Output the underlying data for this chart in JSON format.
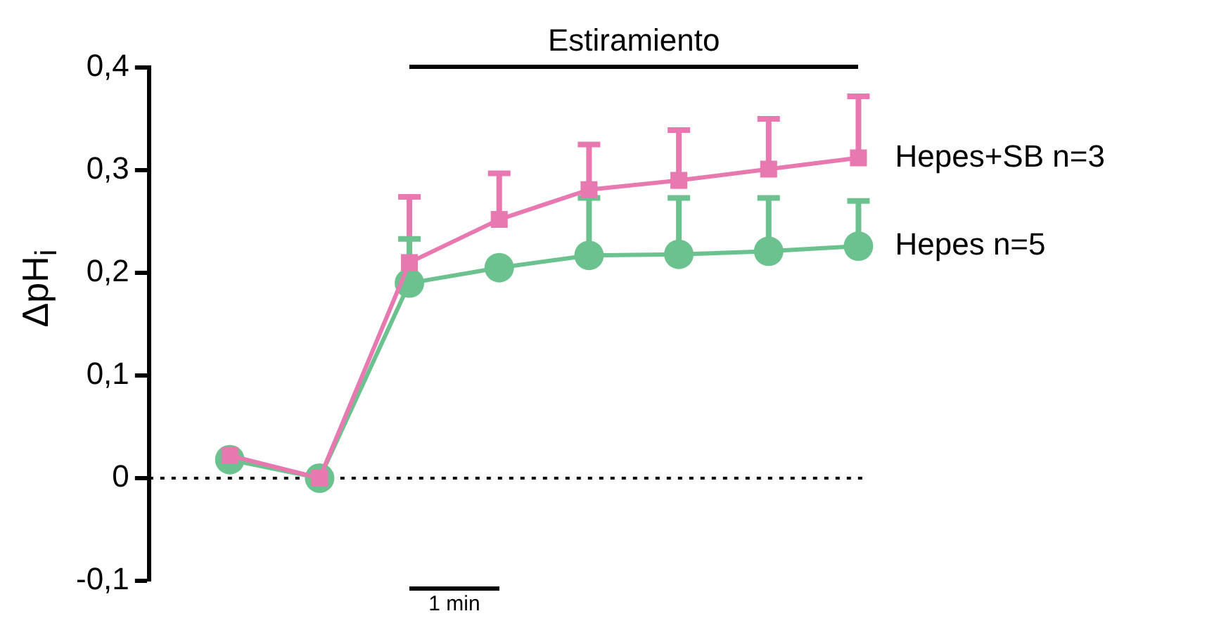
{
  "chart_data": {
    "type": "line",
    "ylabel": "ΔpH$_{i}$",
    "categories": [
      null,
      null,
      null,
      null,
      null,
      null,
      null,
      null
    ],
    "series": [
      {
        "name": "Hepes+SB n=3",
        "color": "#e878b0",
        "marker": "square",
        "values": [
          0.022,
          0,
          0.21,
          0.252,
          0.281,
          0.29,
          0.301,
          0.312
        ],
        "errors": [
          null,
          null,
          [
            0.21,
            0.274
          ],
          [
            0.252,
            0.297
          ],
          [
            0.281,
            0.325
          ],
          [
            0.29,
            0.339
          ],
          [
            0.301,
            0.35
          ],
          [
            0.312,
            0.372
          ]
        ]
      },
      {
        "name": "Hepes n=5",
        "color": "#6cc28e",
        "marker": "circle",
        "values": [
          0.018,
          0,
          0.19,
          0.205,
          0.217,
          0.218,
          0.221,
          0.226
        ],
        "errors": [
          null,
          null,
          [
            0.19,
            0.233
          ],
          null,
          [
            0.217,
            0.273
          ],
          [
            0.218,
            0.273
          ],
          [
            0.221,
            0.273
          ],
          [
            0.226,
            0.27
          ]
        ]
      }
    ],
    "ylim": [
      -0.1,
      0.4
    ],
    "yticks": [
      {
        "value": -0.1,
        "label": "-0,1"
      },
      0,
      {
        "value": 0.1,
        "label": "0,1"
      },
      {
        "value": 0.2,
        "label": "0,2"
      },
      {
        "value": 0.3,
        "label": "0,3"
      },
      {
        "value": 0.4,
        "label": "0,4"
      }
    ],
    "tick_labels": "y",
    "grid": false,
    "legend": "right",
    "ref_lines": [
      {
        "axis": "y",
        "value": 0,
        "color": "#000000",
        "line_style": "dotted"
      }
    ],
    "annotations": [
      "Estiramiento",
      "1 min"
    ]
  }
}
